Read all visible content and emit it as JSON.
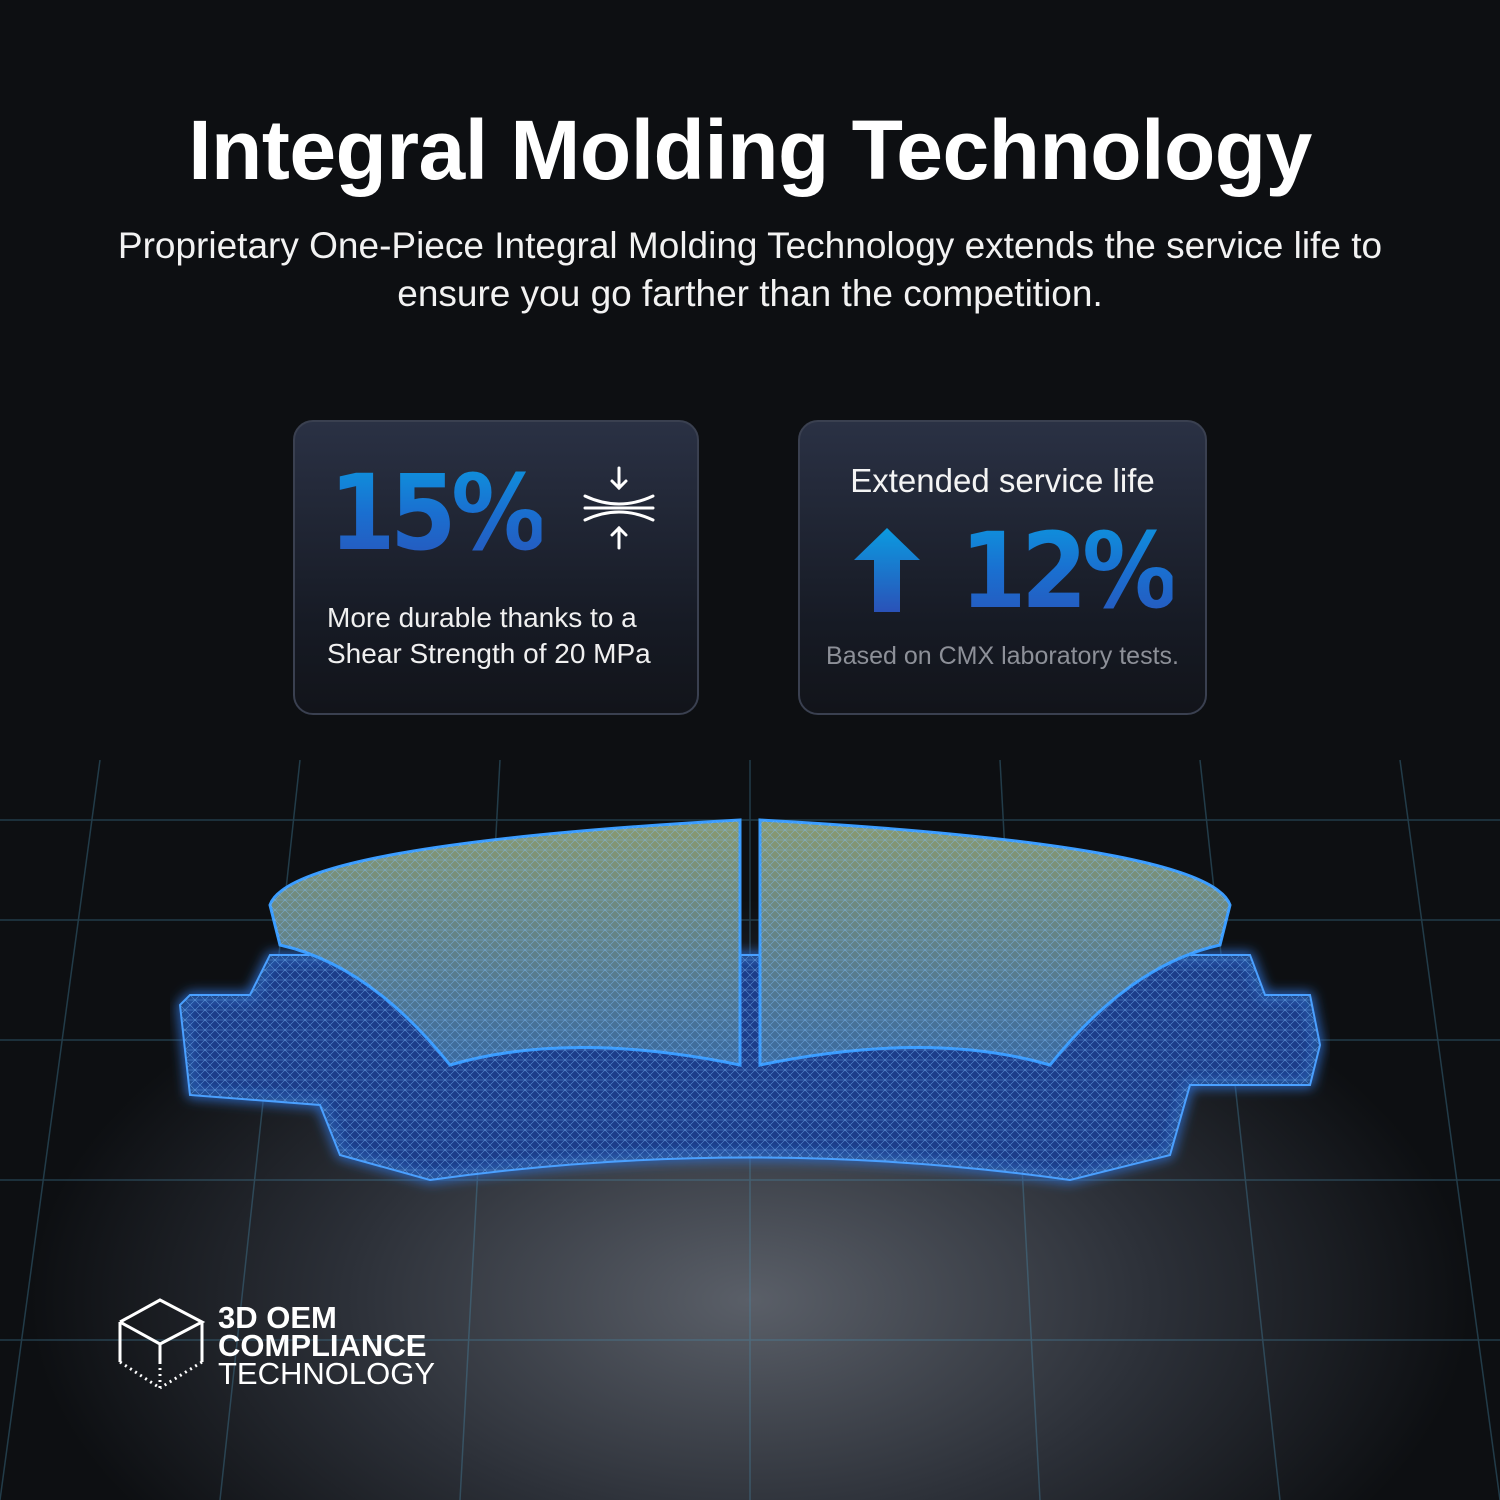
{
  "header": {
    "title": "Integral Molding Technology",
    "subtitle": "Proprietary One-Piece Integral Molding Technology extends the service life to ensure you go farther than the competition."
  },
  "card_strength": {
    "value": "15%",
    "icon": "compression-arrows-icon",
    "description_line1": "More durable thanks to a",
    "description_line2": "Shear Strength of 20 MPa"
  },
  "card_service": {
    "title": "Extended service life",
    "icon": "arrow-up-icon",
    "value": "12%",
    "note": "Based on CMX laboratory tests."
  },
  "badge": {
    "icon": "cube-icon",
    "line1": "3D OEM",
    "line2": "COMPLIANCE",
    "line3": "TECHNOLOGY"
  },
  "colors": {
    "accent": "#1a7fd8",
    "wireframe": "#2f8cff",
    "background": "#0b0c0e"
  }
}
